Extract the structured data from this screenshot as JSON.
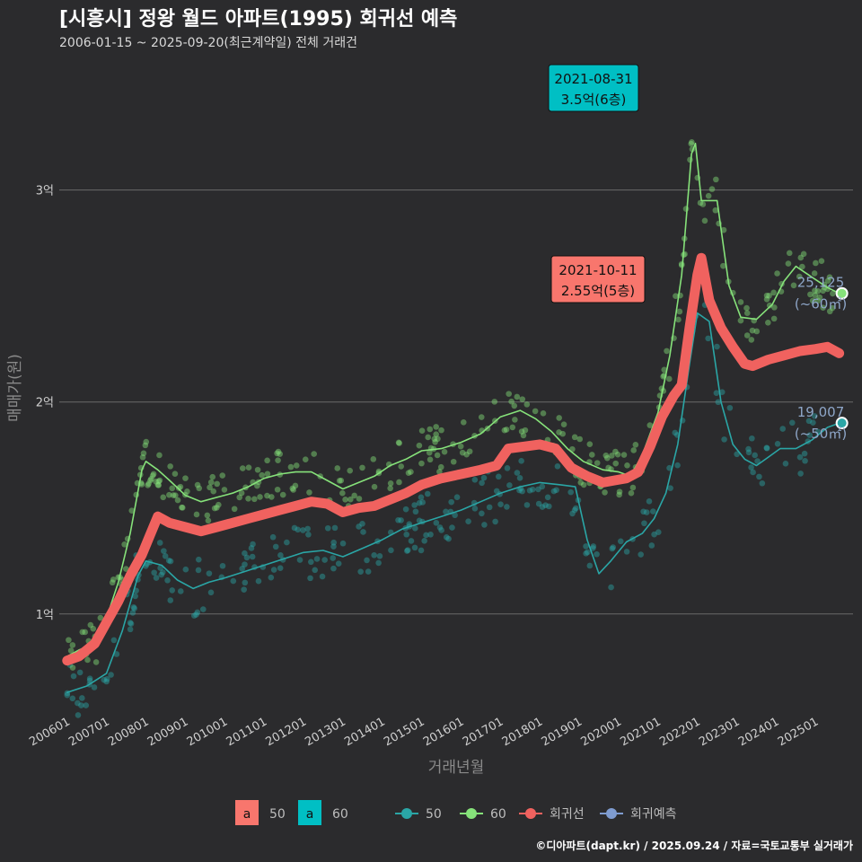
{
  "title": "[시흥시] 정왕 월드 아파트(1995) 회귀선 예측",
  "subtitle": "2006-01-15 ~ 2025-09-20(최근계약일) 전체 거래건",
  "credit": "©디아파트(dapt.kr) / 2025.09.24 / 자료=국토교통부 실거래가",
  "chart_data": {
    "type": "line",
    "xlabel": "거래년월",
    "ylabel": "매매가(원)",
    "x_ticks": [
      "200601",
      "200701",
      "200801",
      "200901",
      "201001",
      "201101",
      "201201",
      "201301",
      "201401",
      "201501",
      "201601",
      "201701",
      "201801",
      "201901",
      "202001",
      "202101",
      "202201",
      "202301",
      "202401",
      "202501"
    ],
    "y_ticks": [
      {
        "value": 10000,
        "label": "1억"
      },
      {
        "value": 20000,
        "label": "2억"
      },
      {
        "value": 30000,
        "label": "3억"
      }
    ],
    "ylim": [
      5500,
      36000
    ],
    "xlim": [
      2005.8,
      2025.95
    ],
    "colors": {
      "s50": "#2aa6a6",
      "s60": "#86e27a",
      "reg": "#f0625f",
      "pred": "#7f9cd0",
      "ann60": "#00bfc4",
      "ann50": "#f8766d"
    },
    "series": [
      {
        "name": "50",
        "key": "s50",
        "points": [
          [
            2006.0,
            6300
          ],
          [
            2006.5,
            6600
          ],
          [
            2007.0,
            7200
          ],
          [
            2007.4,
            9200
          ],
          [
            2007.8,
            11800
          ],
          [
            2008.0,
            12500
          ],
          [
            2008.4,
            12300
          ],
          [
            2008.8,
            11600
          ],
          [
            2009.2,
            11200
          ],
          [
            2009.6,
            11500
          ],
          [
            2010.0,
            11700
          ],
          [
            2010.5,
            12000
          ],
          [
            2011.0,
            12300
          ],
          [
            2011.5,
            12600
          ],
          [
            2012.0,
            12900
          ],
          [
            2012.5,
            13000
          ],
          [
            2013.0,
            12700
          ],
          [
            2013.5,
            13100
          ],
          [
            2014.0,
            13500
          ],
          [
            2014.5,
            14000
          ],
          [
            2015.0,
            14300
          ],
          [
            2015.5,
            14600
          ],
          [
            2016.0,
            14900
          ],
          [
            2016.5,
            15300
          ],
          [
            2017.0,
            15700
          ],
          [
            2017.5,
            16000
          ],
          [
            2018.0,
            16200
          ],
          [
            2018.5,
            16100
          ],
          [
            2018.9,
            16000
          ],
          [
            2019.2,
            13500
          ],
          [
            2019.5,
            11900
          ],
          [
            2019.8,
            12500
          ],
          [
            2020.2,
            13400
          ],
          [
            2020.6,
            13800
          ],
          [
            2020.9,
            14500
          ],
          [
            2021.2,
            15700
          ],
          [
            2021.5,
            18000
          ],
          [
            2021.8,
            21800
          ],
          [
            2022.0,
            24200
          ],
          [
            2022.3,
            23800
          ],
          [
            2022.6,
            20000
          ],
          [
            2022.9,
            18000
          ],
          [
            2023.2,
            17300
          ],
          [
            2023.5,
            17000
          ],
          [
            2023.8,
            17400
          ],
          [
            2024.1,
            17800
          ],
          [
            2024.5,
            17800
          ],
          [
            2024.9,
            18200
          ],
          [
            2025.3,
            18800
          ],
          [
            2025.6,
            19000
          ]
        ]
      },
      {
        "name": "60",
        "key": "s60",
        "points": [
          [
            2006.0,
            8000
          ],
          [
            2006.3,
            8300
          ],
          [
            2006.7,
            8600
          ],
          [
            2007.0,
            9800
          ],
          [
            2007.3,
            11500
          ],
          [
            2007.6,
            13800
          ],
          [
            2007.9,
            16800
          ],
          [
            2008.0,
            17200
          ],
          [
            2008.3,
            16800
          ],
          [
            2008.6,
            16300
          ],
          [
            2009.0,
            15600
          ],
          [
            2009.4,
            15300
          ],
          [
            2009.8,
            15500
          ],
          [
            2010.2,
            15700
          ],
          [
            2010.6,
            16000
          ],
          [
            2011.0,
            16400
          ],
          [
            2011.4,
            16600
          ],
          [
            2011.8,
            16700
          ],
          [
            2012.2,
            16700
          ],
          [
            2012.6,
            16300
          ],
          [
            2013.0,
            15900
          ],
          [
            2013.4,
            16200
          ],
          [
            2013.8,
            16500
          ],
          [
            2014.2,
            17000
          ],
          [
            2014.6,
            17300
          ],
          [
            2015.0,
            17700
          ],
          [
            2015.5,
            17800
          ],
          [
            2016.0,
            18100
          ],
          [
            2016.5,
            18500
          ],
          [
            2017.0,
            19300
          ],
          [
            2017.5,
            19600
          ],
          [
            2017.9,
            19200
          ],
          [
            2018.3,
            18600
          ],
          [
            2018.7,
            17800
          ],
          [
            2019.1,
            17200
          ],
          [
            2019.6,
            16800
          ],
          [
            2020.0,
            16700
          ],
          [
            2020.3,
            16500
          ],
          [
            2020.6,
            17500
          ],
          [
            2021.0,
            19500
          ],
          [
            2021.3,
            22200
          ],
          [
            2021.6,
            26000
          ],
          [
            2021.85,
            31700
          ],
          [
            2021.95,
            32200
          ],
          [
            2022.1,
            29500
          ],
          [
            2022.5,
            29500
          ],
          [
            2022.8,
            25500
          ],
          [
            2023.1,
            24000
          ],
          [
            2023.5,
            23900
          ],
          [
            2023.9,
            24600
          ],
          [
            2024.2,
            25700
          ],
          [
            2024.5,
            26400
          ],
          [
            2024.9,
            25900
          ],
          [
            2025.3,
            25400
          ],
          [
            2025.6,
            25125
          ]
        ]
      },
      {
        "name": "회귀선",
        "key": "reg",
        "points": [
          [
            2006.0,
            7800
          ],
          [
            2006.3,
            8000
          ],
          [
            2006.7,
            8600
          ],
          [
            2007.0,
            9600
          ],
          [
            2007.3,
            10600
          ],
          [
            2007.6,
            11800
          ],
          [
            2007.9,
            12800
          ],
          [
            2008.1,
            13700
          ],
          [
            2008.3,
            14600
          ],
          [
            2008.6,
            14300
          ],
          [
            2009.0,
            14100
          ],
          [
            2009.4,
            13900
          ],
          [
            2009.8,
            14100
          ],
          [
            2010.2,
            14300
          ],
          [
            2010.6,
            14500
          ],
          [
            2011.0,
            14700
          ],
          [
            2011.4,
            14900
          ],
          [
            2011.8,
            15100
          ],
          [
            2012.2,
            15300
          ],
          [
            2012.6,
            15200
          ],
          [
            2013.0,
            14800
          ],
          [
            2013.4,
            15000
          ],
          [
            2013.8,
            15100
          ],
          [
            2014.2,
            15400
          ],
          [
            2014.6,
            15700
          ],
          [
            2015.0,
            16100
          ],
          [
            2015.5,
            16400
          ],
          [
            2016.0,
            16600
          ],
          [
            2016.5,
            16800
          ],
          [
            2016.9,
            17000
          ],
          [
            2017.2,
            17800
          ],
          [
            2017.6,
            17900
          ],
          [
            2018.0,
            18000
          ],
          [
            2018.4,
            17800
          ],
          [
            2018.8,
            16900
          ],
          [
            2019.2,
            16500
          ],
          [
            2019.6,
            16200
          ],
          [
            2019.9,
            16300
          ],
          [
            2020.2,
            16400
          ],
          [
            2020.5,
            16700
          ],
          [
            2020.8,
            17900
          ],
          [
            2021.1,
            19300
          ],
          [
            2021.4,
            20300
          ],
          [
            2021.6,
            20800
          ],
          [
            2021.8,
            23500
          ],
          [
            2022.0,
            26000
          ],
          [
            2022.1,
            26800
          ],
          [
            2022.3,
            24800
          ],
          [
            2022.6,
            23500
          ],
          [
            2022.9,
            22600
          ],
          [
            2023.2,
            21800
          ],
          [
            2023.4,
            21700
          ],
          [
            2023.8,
            22000
          ],
          [
            2024.2,
            22200
          ],
          [
            2024.6,
            22400
          ],
          [
            2025.0,
            22500
          ],
          [
            2025.3,
            22600
          ],
          [
            2025.6,
            22300
          ]
        ]
      }
    ],
    "annotations": [
      {
        "date": "2021-08-31",
        "value": "3.5억(6층)",
        "x": 2021.66,
        "y": 35000,
        "key": "ann60"
      },
      {
        "date": "2021-10-11",
        "value": "2.55억(5층)",
        "x": 2021.78,
        "y": 25500,
        "key": "ann50"
      }
    ],
    "end_labels": [
      {
        "value": "25,125",
        "area": "(~60㎡)",
        "x": 2025.6,
        "y": 25125,
        "key": "s60"
      },
      {
        "value": "19,007",
        "area": "(~50㎡)",
        "x": 2025.6,
        "y": 19007,
        "key": "s50"
      }
    ],
    "legend": {
      "placement": "bottom",
      "area_items": [
        {
          "letter": "a",
          "label": "50",
          "key": "ann50"
        },
        {
          "letter": "a",
          "label": "60",
          "key": "ann60"
        }
      ],
      "line_items": [
        {
          "label": "50",
          "key": "s50"
        },
        {
          "label": "60",
          "key": "s60"
        },
        {
          "label": "회귀선",
          "key": "reg"
        },
        {
          "label": "회귀예측",
          "key": "pred"
        }
      ]
    }
  }
}
